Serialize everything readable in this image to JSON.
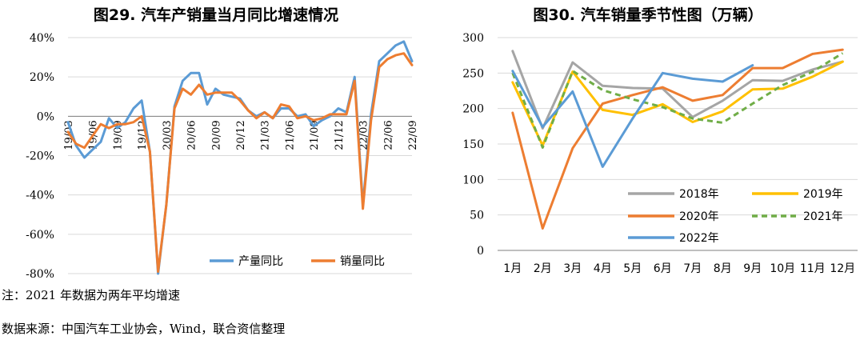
{
  "chart_data": [
    {
      "type": "line",
      "title": "图29.  汽车产销量当月同比增速情况",
      "x": [
        "19/03",
        "19/04",
        "19/05",
        "19/06",
        "19/07",
        "19/08",
        "19/09",
        "19/10",
        "19/11",
        "19/12",
        "20/01",
        "20/02",
        "20/03",
        "20/04",
        "20/05",
        "20/06",
        "20/07",
        "20/08",
        "20/09",
        "20/10",
        "20/11",
        "20/12",
        "21/01",
        "21/02",
        "21/03",
        "21/04",
        "21/05",
        "21/06",
        "21/07",
        "21/08",
        "21/09",
        "21/10",
        "21/11",
        "21/12",
        "22/01",
        "22/02",
        "22/03",
        "22/04",
        "22/05",
        "22/06",
        "22/07",
        "22/08",
        "22/09"
      ],
      "xtick_labels": [
        "19/03",
        "19/06",
        "19/09",
        "19/12",
        "20/03",
        "20/06",
        "20/09",
        "20/12",
        "21/03",
        "21/06",
        "21/09",
        "21/12",
        "22/03",
        "22/06",
        "22/09"
      ],
      "ytick_labels": [
        "40%",
        "20%",
        "0%",
        "-20%",
        "-40%",
        "-60%",
        "-80%"
      ],
      "ylim": [
        -80,
        40
      ],
      "yunit": "%",
      "legend_position": "bottom-right",
      "series": [
        {
          "name": "产量同比",
          "color": "#5b9bd5",
          "values": [
            -3,
            -15,
            -21,
            -17,
            -13,
            -1,
            -6,
            -3,
            4,
            8,
            -18,
            -80,
            -45,
            5,
            18,
            22,
            22,
            6,
            14,
            11,
            10,
            9,
            3,
            0,
            2,
            -1,
            4,
            4,
            0,
            1,
            -5,
            -2,
            0,
            4,
            2,
            20,
            -45,
            1,
            28,
            32,
            36,
            38,
            28
          ]
        },
        {
          "name": "销量同比",
          "color": "#ed7d31",
          "values": [
            -8,
            -14,
            -16,
            -10,
            -4,
            -6,
            -4,
            -4,
            -3,
            0,
            -18,
            -79,
            -45,
            4,
            14,
            11,
            16,
            11,
            12,
            12,
            12,
            8,
            3,
            -1,
            2,
            -1,
            6,
            5,
            -1,
            0,
            -2,
            -1,
            1,
            1,
            1,
            18,
            -47,
            -2,
            25,
            29,
            31,
            32,
            26
          ]
        }
      ]
    },
    {
      "type": "line",
      "title": "图30.  汽车销量季节性图（万辆）",
      "categories": [
        "1月",
        "2月",
        "3月",
        "4月",
        "5月",
        "6月",
        "7月",
        "8月",
        "9月",
        "10月",
        "11月",
        "12月"
      ],
      "ytick_labels": [
        "300",
        "250",
        "200",
        "150",
        "100",
        "50",
        "0"
      ],
      "ylim": [
        0,
        300
      ],
      "legend_position": "bottom-center",
      "series": [
        {
          "name": "2018年",
          "color": "#a5a5a5",
          "dash": "solid",
          "values": [
            281,
            172,
            265,
            232,
            229,
            228,
            188,
            211,
            240,
            239,
            255,
            266
          ]
        },
        {
          "name": "2019年",
          "color": "#ffc000",
          "dash": "solid",
          "values": [
            237,
            148,
            252,
            198,
            191,
            206,
            181,
            196,
            227,
            228,
            245,
            266
          ]
        },
        {
          "name": "2020年",
          "color": "#ed7d31",
          "dash": "solid",
          "values": [
            194,
            31,
            144,
            207,
            219,
            230,
            211,
            219,
            257,
            257,
            277,
            283
          ]
        },
        {
          "name": "2021年",
          "color": "#70ad47",
          "dash": "dashed",
          "values": [
            250,
            145,
            253,
            226,
            213,
            202,
            186,
            180,
            207,
            233,
            252,
            278
          ]
        },
        {
          "name": "2022年",
          "color": "#5b9bd5",
          "dash": "solid",
          "values": [
            253,
            174,
            224,
            118,
            186,
            250,
            242,
            238,
            261,
            null,
            null,
            null
          ]
        }
      ]
    }
  ],
  "notes": {
    "line1": "注：2021 年数据为两年平均增速",
    "line2": "数据来源：中国汽车工业协会，Wind，联合资信整理"
  }
}
